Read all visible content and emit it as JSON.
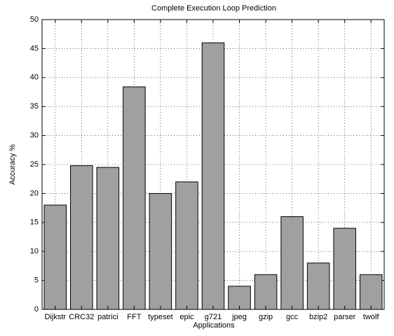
{
  "chart_data": {
    "type": "bar",
    "title": "Complete Execution Loop Prediction",
    "x_label": "Applications",
    "y_label": "Accuracy %",
    "categories": [
      "Dijkstr",
      "CRC32",
      "patrici",
      "FFT",
      "typeset",
      "epic",
      "g721",
      "jpeg",
      "gzip",
      "gcc",
      "bzip2",
      "parser",
      "twolf"
    ],
    "values": [
      18,
      24.8,
      24.5,
      38.4,
      20,
      22,
      46,
      4,
      6,
      16,
      8,
      14,
      6
    ],
    "color": "#a0a0a0",
    "ylim": [
      0,
      50
    ],
    "yticks": [
      0,
      5,
      10,
      15,
      20,
      25,
      30,
      35,
      40,
      45,
      50
    ],
    "grid": true
  }
}
